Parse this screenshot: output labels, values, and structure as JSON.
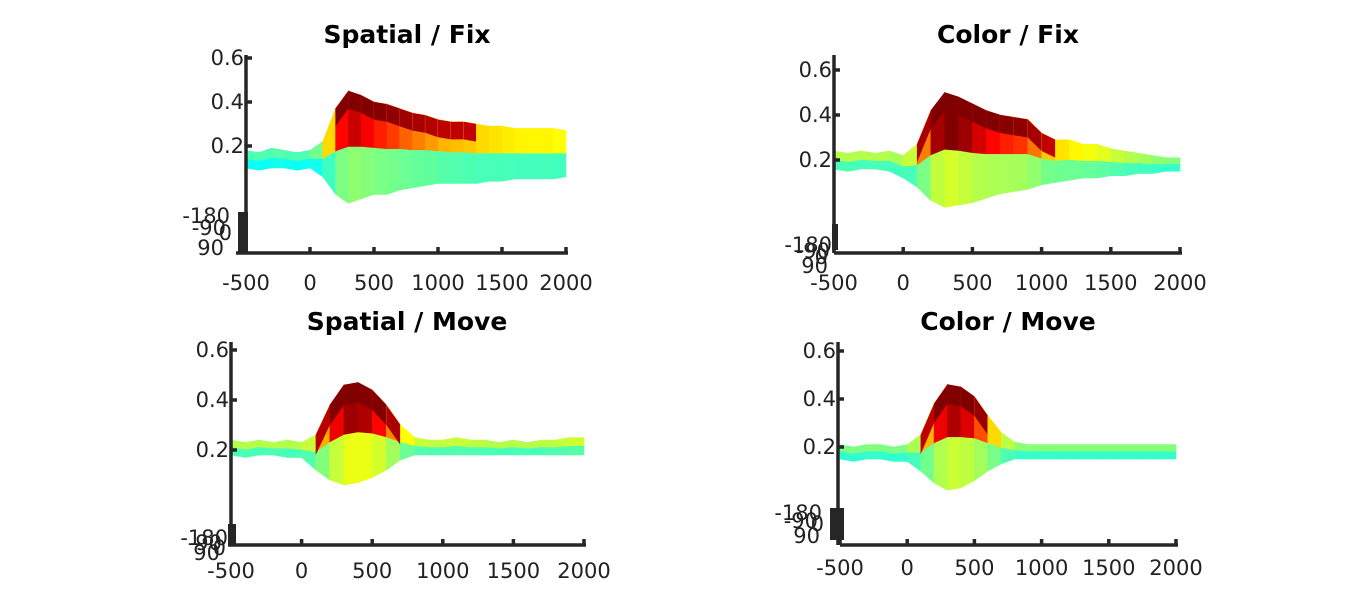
{
  "figure": {
    "colormap": "jet",
    "colors": {
      "axis": "#262626",
      "text": "#222222",
      "background": "#ffffff"
    }
  },
  "chart_data": [
    {
      "type": "surface",
      "title": "Spatial / Fix",
      "x_ticks": [
        "-500",
        "0",
        "500",
        "1000",
        "1500",
        "2000"
      ],
      "z_ticks": [
        "0.2",
        "0.4",
        "0.6"
      ],
      "y_ticks": [
        "-180",
        "-90",
        "0",
        "90"
      ],
      "xlim": [
        -500,
        2000
      ],
      "zlim": [
        0,
        0.6
      ],
      "time": [
        -500,
        -400,
        -300,
        -200,
        -100,
        0,
        100,
        200,
        300,
        400,
        500,
        600,
        700,
        800,
        900,
        1000,
        1100,
        1200,
        1300,
        1400,
        1500,
        1600,
        1700,
        1800,
        1900,
        2000
      ],
      "peak": [
        0.18,
        0.17,
        0.19,
        0.18,
        0.17,
        0.18,
        0.22,
        0.37,
        0.45,
        0.43,
        0.4,
        0.39,
        0.37,
        0.35,
        0.34,
        0.32,
        0.31,
        0.31,
        0.3,
        0.29,
        0.29,
        0.28,
        0.28,
        0.28,
        0.28,
        0.27
      ],
      "trough": [
        0.1,
        0.09,
        0.1,
        0.1,
        0.09,
        0.1,
        0.06,
        -0.02,
        -0.06,
        -0.04,
        -0.02,
        -0.02,
        0.0,
        0.01,
        0.02,
        0.03,
        0.03,
        0.03,
        0.03,
        0.04,
        0.04,
        0.05,
        0.05,
        0.05,
        0.05,
        0.06
      ]
    },
    {
      "type": "surface",
      "title": "Color / Fix",
      "x_ticks": [
        "-500",
        "0",
        "500",
        "1000",
        "1500",
        "2000"
      ],
      "z_ticks": [
        "0.2",
        "0.4",
        "0.6"
      ],
      "y_ticks": [
        "-180",
        "-90",
        "0",
        "90"
      ],
      "xlim": [
        -500,
        2000
      ],
      "zlim": [
        0,
        0.6
      ],
      "time": [
        -500,
        -400,
        -300,
        -200,
        -100,
        0,
        100,
        200,
        300,
        400,
        500,
        600,
        700,
        800,
        900,
        1000,
        1100,
        1200,
        1300,
        1400,
        1500,
        1600,
        1700,
        1800,
        1900,
        2000
      ],
      "peak": [
        0.24,
        0.23,
        0.24,
        0.23,
        0.24,
        0.22,
        0.27,
        0.42,
        0.5,
        0.48,
        0.45,
        0.42,
        0.4,
        0.39,
        0.38,
        0.32,
        0.29,
        0.29,
        0.27,
        0.27,
        0.25,
        0.24,
        0.23,
        0.22,
        0.21,
        0.21
      ],
      "trough": [
        0.16,
        0.15,
        0.16,
        0.16,
        0.15,
        0.12,
        0.08,
        0.02,
        -0.01,
        0.0,
        0.01,
        0.03,
        0.05,
        0.06,
        0.07,
        0.09,
        0.1,
        0.11,
        0.12,
        0.12,
        0.13,
        0.13,
        0.14,
        0.14,
        0.15,
        0.15
      ]
    },
    {
      "type": "surface",
      "title": "Spatial / Move",
      "x_ticks": [
        "-500",
        "0",
        "500",
        "1000",
        "1500",
        "2000"
      ],
      "z_ticks": [
        "0.2",
        "0.4",
        "0.6"
      ],
      "y_ticks": [
        "-180",
        "-90",
        "0",
        "90"
      ],
      "xlim": [
        -500,
        2000
      ],
      "zlim": [
        0,
        0.6
      ],
      "time": [
        -500,
        -400,
        -300,
        -200,
        -100,
        0,
        100,
        200,
        300,
        400,
        500,
        600,
        700,
        800,
        900,
        1000,
        1100,
        1200,
        1300,
        1400,
        1500,
        1600,
        1700,
        1800,
        1900,
        2000
      ],
      "peak": [
        0.24,
        0.23,
        0.24,
        0.23,
        0.24,
        0.23,
        0.26,
        0.38,
        0.46,
        0.47,
        0.44,
        0.38,
        0.3,
        0.25,
        0.24,
        0.24,
        0.25,
        0.24,
        0.24,
        0.23,
        0.24,
        0.23,
        0.24,
        0.24,
        0.25,
        0.25
      ],
      "trough": [
        0.18,
        0.17,
        0.18,
        0.18,
        0.17,
        0.17,
        0.12,
        0.08,
        0.06,
        0.07,
        0.09,
        0.12,
        0.16,
        0.18,
        0.18,
        0.18,
        0.18,
        0.18,
        0.18,
        0.18,
        0.18,
        0.18,
        0.18,
        0.18,
        0.18,
        0.18
      ]
    },
    {
      "type": "surface",
      "title": "Color / Move",
      "x_ticks": [
        "-500",
        "0",
        "500",
        "1000",
        "1500",
        "2000"
      ],
      "z_ticks": [
        "0.2",
        "0.4",
        "0.6"
      ],
      "y_ticks": [
        "-180",
        "-90",
        "0",
        "90"
      ],
      "xlim": [
        -500,
        2000
      ],
      "zlim": [
        0,
        0.6
      ],
      "time": [
        -500,
        -400,
        -300,
        -200,
        -100,
        0,
        100,
        200,
        300,
        400,
        500,
        600,
        700,
        800,
        900,
        1000,
        1100,
        1200,
        1300,
        1400,
        1500,
        1600,
        1700,
        1800,
        1900,
        2000
      ],
      "peak": [
        0.21,
        0.2,
        0.21,
        0.21,
        0.2,
        0.21,
        0.25,
        0.38,
        0.46,
        0.45,
        0.41,
        0.33,
        0.26,
        0.22,
        0.21,
        0.21,
        0.21,
        0.21,
        0.21,
        0.21,
        0.21,
        0.21,
        0.21,
        0.21,
        0.21,
        0.21
      ],
      "trough": [
        0.15,
        0.14,
        0.15,
        0.15,
        0.14,
        0.14,
        0.1,
        0.05,
        0.02,
        0.03,
        0.06,
        0.1,
        0.13,
        0.15,
        0.15,
        0.15,
        0.15,
        0.15,
        0.15,
        0.15,
        0.15,
        0.15,
        0.15,
        0.15,
        0.15,
        0.15
      ]
    }
  ]
}
